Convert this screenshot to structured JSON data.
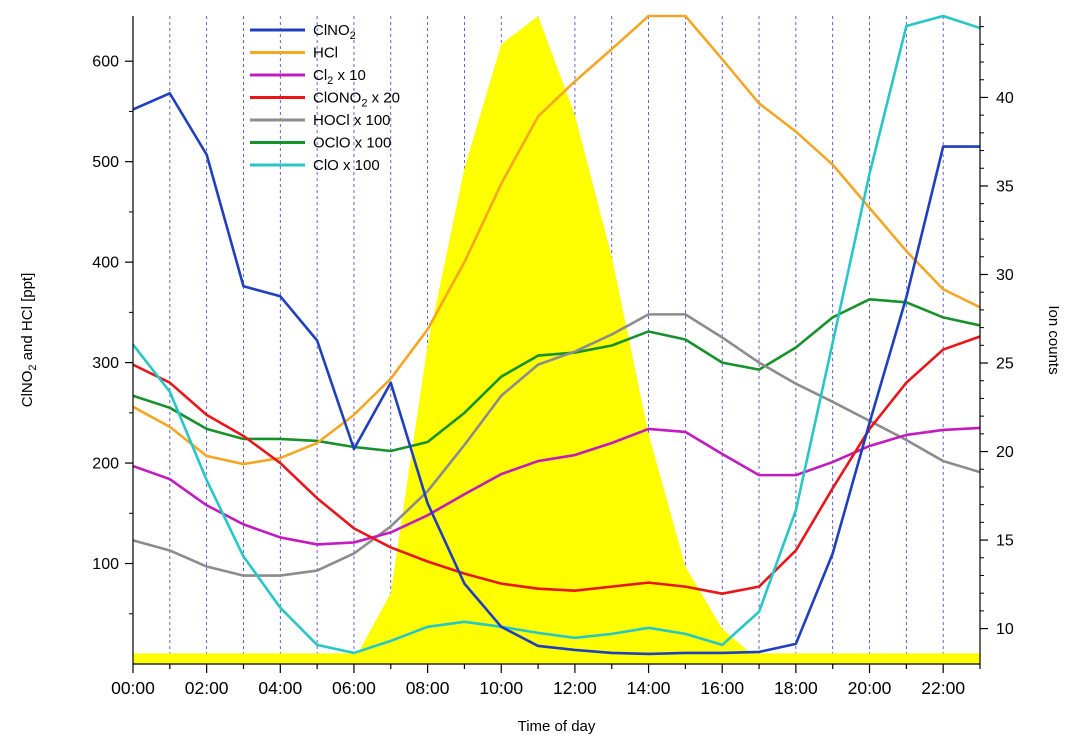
{
  "chart_data": {
    "type": "line",
    "xlabel": "Time of day",
    "ylabel": "ClNO2 and HCl [ppt]",
    "ylabel_parts": [
      "ClNO",
      "2",
      " and HCl [ppt]"
    ],
    "y2label": "Ion counts",
    "x_hours": [
      0,
      1,
      2,
      3,
      4,
      5,
      6,
      7,
      8,
      9,
      10,
      11,
      12,
      13,
      14,
      15,
      16,
      17,
      18,
      19,
      20,
      21,
      22,
      23
    ],
    "xlim": [
      0,
      23
    ],
    "ylim": [
      0,
      645
    ],
    "y2lim": [
      8,
      44.6
    ],
    "x_ticks": [
      "00:00",
      "02:00",
      "04:00",
      "06:00",
      "08:00",
      "10:00",
      "12:00",
      "14:00",
      "16:00",
      "18:00",
      "20:00",
      "22:00"
    ],
    "x_tick_hours": [
      0,
      2,
      4,
      6,
      8,
      10,
      12,
      14,
      16,
      18,
      20,
      22
    ],
    "y_ticks": [
      100,
      200,
      300,
      400,
      500,
      600
    ],
    "y2_ticks": [
      10,
      15,
      20,
      25,
      30,
      35,
      40
    ],
    "grid": "vertical dashed at each hour",
    "legend_position": "top-left",
    "series": [
      {
        "name": "ClNO2",
        "label_parts": [
          "ClNO",
          "2",
          ""
        ],
        "axis": "left",
        "color": "#1f3fbf",
        "values": [
          552,
          568,
          507,
          376,
          366,
          322,
          214,
          280,
          160,
          80,
          37,
          18,
          14,
          11,
          10,
          11,
          11,
          12,
          20,
          110,
          240,
          365,
          515,
          515
        ]
      },
      {
        "name": "HCl",
        "label_parts": [
          "HCl"
        ],
        "axis": "left",
        "color": "#f5a623",
        "values": [
          256,
          236,
          207,
          199,
          205,
          220,
          248,
          284,
          333,
          400,
          478,
          545,
          580,
          612,
          645,
          645,
          602,
          558,
          530,
          497,
          454,
          411,
          373,
          355
        ]
      },
      {
        "name": "Cl2 x 10",
        "label_parts": [
          "Cl",
          "2",
          " x 10"
        ],
        "axis": "left",
        "color": "#c21cbf",
        "values": [
          197,
          184,
          158,
          139,
          126,
          119,
          121,
          131,
          148,
          169,
          189,
          202,
          208,
          220,
          234,
          231,
          209,
          188,
          188,
          201,
          217,
          228,
          233,
          235
        ]
      },
      {
        "name": "ClONO2 x 20",
        "label_parts": [
          "ClONO",
          "2",
          " x 20"
        ],
        "axis": "left",
        "color": "#e8161a",
        "values": [
          298,
          280,
          248,
          227,
          200,
          165,
          135,
          116,
          102,
          90,
          80,
          75,
          73,
          77,
          81,
          77,
          70,
          77,
          113,
          175,
          234,
          280,
          313,
          326
        ]
      },
      {
        "name": "HOCl x 100",
        "label_parts": [
          "HOCl x 100"
        ],
        "axis": "left",
        "color": "#8c8c8c",
        "values": [
          123,
          113,
          97,
          88,
          88,
          93,
          110,
          137,
          172,
          218,
          267,
          298,
          311,
          328,
          348,
          348,
          325,
          300,
          279,
          261,
          242,
          223,
          202,
          191
        ]
      },
      {
        "name": "OClO x 100",
        "label_parts": [
          "OClO x 100"
        ],
        "axis": "left",
        "color": "#17922a",
        "values": [
          267,
          255,
          234,
          224,
          224,
          222,
          216,
          212,
          221,
          250,
          286,
          307,
          310,
          317,
          331,
          323,
          300,
          293,
          315,
          345,
          363,
          360,
          345,
          337
        ]
      },
      {
        "name": "ClO x 100",
        "label_parts": [
          "ClO x 100"
        ],
        "axis": "left",
        "color": "#27c7c7",
        "values": [
          318,
          271,
          183,
          107,
          56,
          19,
          11,
          23,
          37,
          42,
          37,
          31,
          26,
          30,
          36,
          30,
          19,
          52,
          153,
          320,
          488,
          635,
          645,
          633
        ]
      }
    ],
    "ion_counts": {
      "axis": "right",
      "color": "#ffff00",
      "x": [
        6,
        7,
        8,
        9,
        10,
        11,
        12,
        13,
        14,
        15,
        16,
        17
      ],
      "values": [
        8.2,
        12,
        26,
        36,
        43,
        44.6,
        39,
        31,
        21,
        13.5,
        10,
        8.2
      ]
    }
  }
}
